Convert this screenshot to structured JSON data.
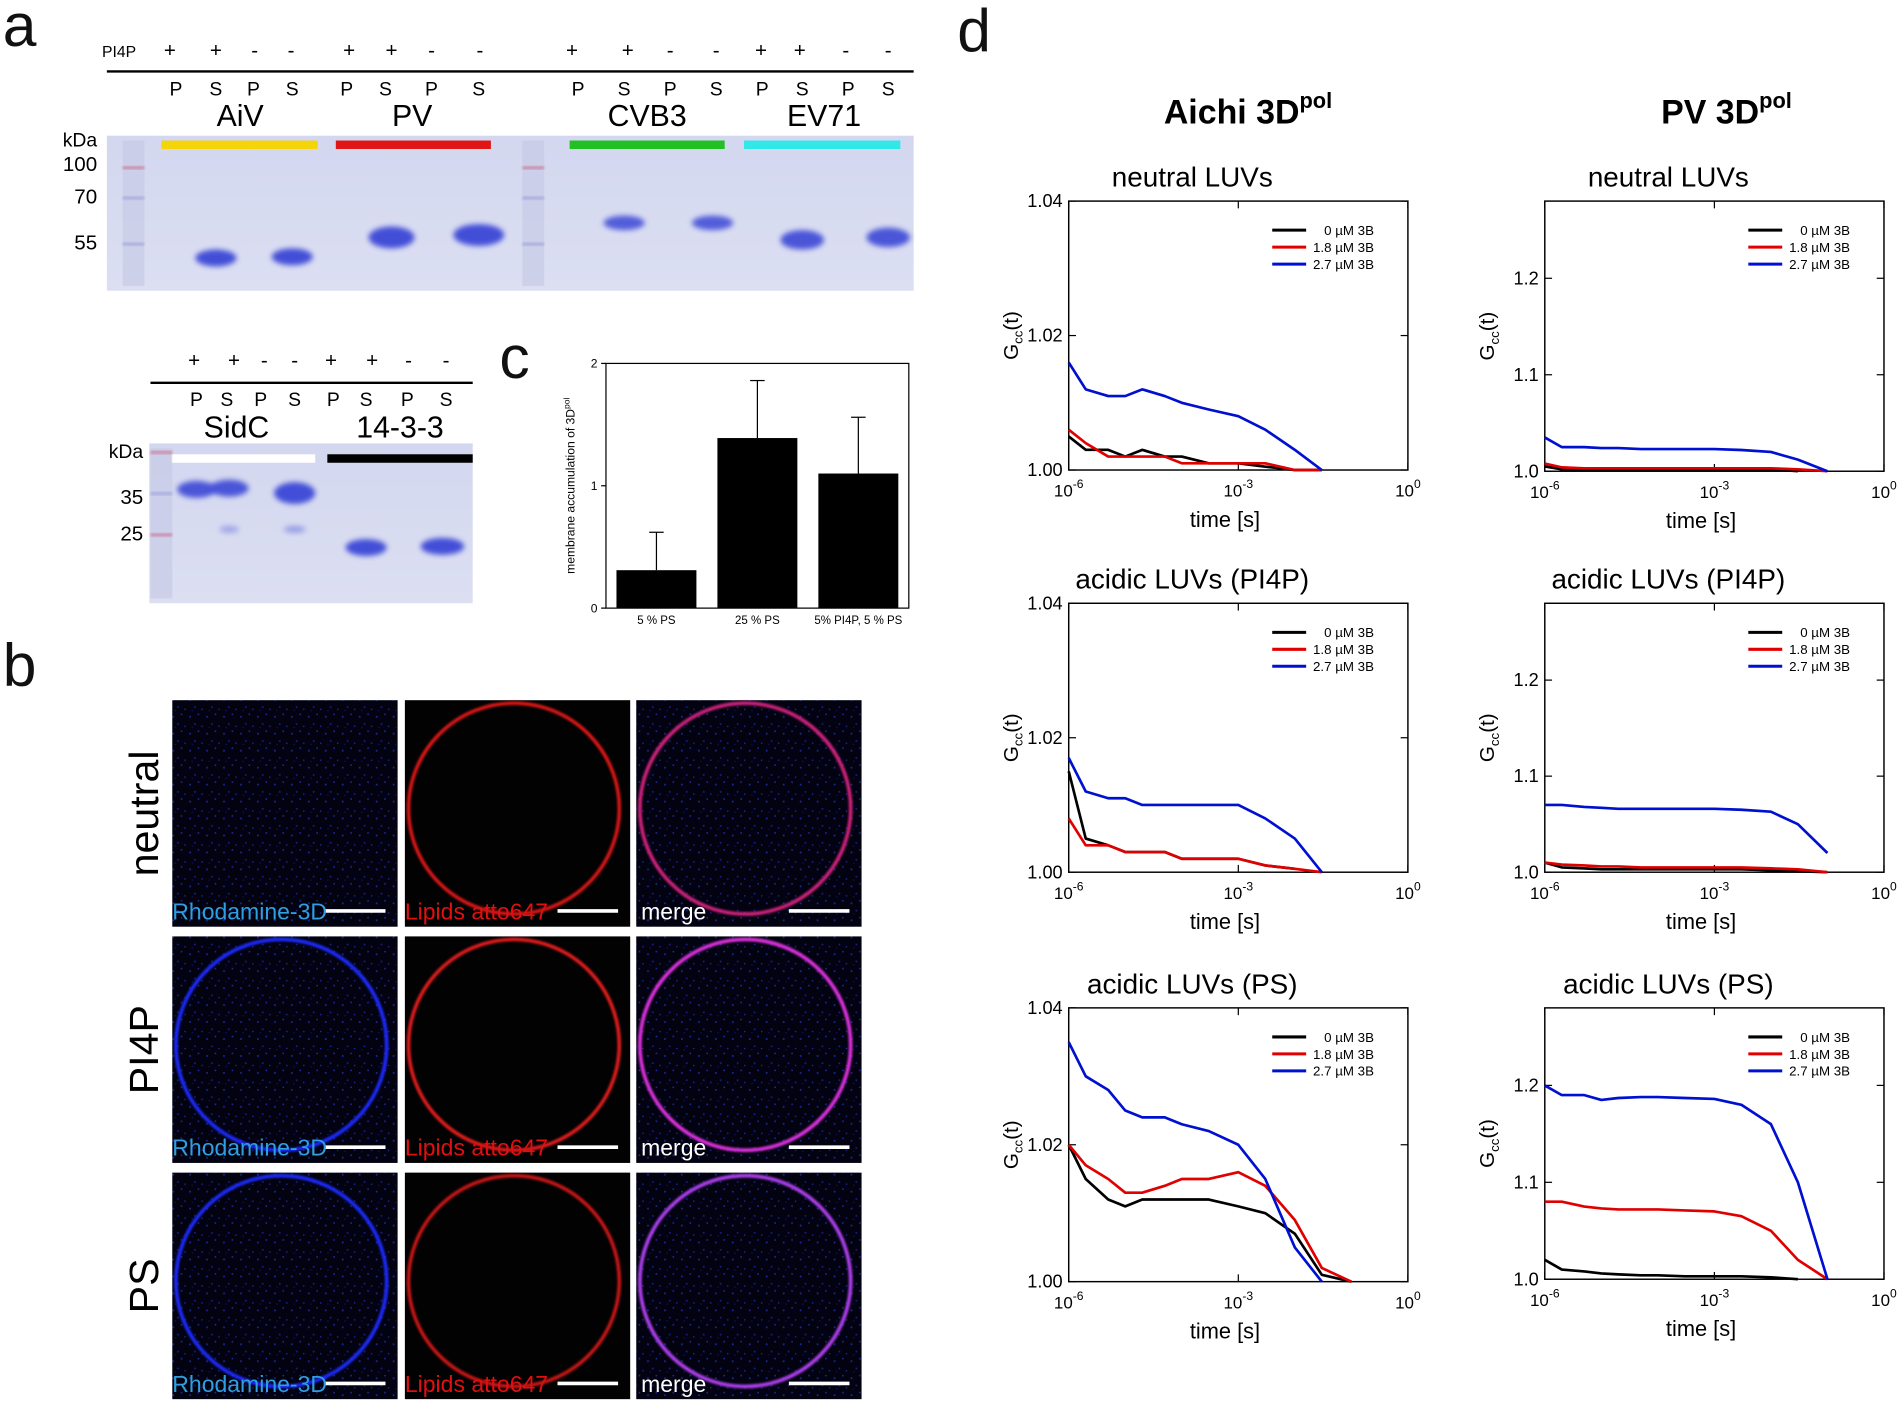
{
  "panel_a": {
    "label": "a",
    "pi4p_label": "PI4P",
    "gel1": {
      "signs": [
        "+",
        "+",
        "-",
        "-",
        "+",
        "+",
        "-",
        "-",
        "+",
        "+",
        "-",
        "-",
        "+",
        "+",
        "-",
        "-"
      ],
      "lanes": [
        "P",
        "S",
        "P",
        "S",
        "P",
        "S",
        "P",
        "S",
        "P",
        "S",
        "P",
        "S",
        "P",
        "S",
        "P",
        "S"
      ],
      "proteins": [
        "AiV",
        "PV",
        "CVB3",
        "EV71"
      ],
      "kda_label": "kDa",
      "markers": [
        100,
        70,
        55
      ]
    },
    "gel2": {
      "signs": [
        "+",
        "+",
        "-",
        "-",
        "+",
        "+",
        "-",
        "-"
      ],
      "lanes": [
        "P",
        "S",
        "P",
        "S",
        "P",
        "S",
        "P",
        "S"
      ],
      "proteins": [
        "SidC",
        "14-3-3"
      ],
      "kda_label": "kDa",
      "markers": [
        35,
        25
      ]
    }
  },
  "panel_b": {
    "label": "b",
    "rows": [
      "neutral",
      "PI4P",
      "PS"
    ],
    "channels": [
      "Rhodamine-3D",
      "Lipids atto647",
      "merge"
    ]
  },
  "panel_c": {
    "label": "c"
  },
  "panel_d": {
    "label": "d",
    "columns": [
      {
        "text": "Aichi 3D",
        "superscript": "pol"
      },
      {
        "text": "PV 3D",
        "superscript": "pol"
      }
    ]
  },
  "chart_data": [
    {
      "type": "bar",
      "ylabel": {
        "text": "membrane accumulation of 3D",
        "superscript": "pol"
      },
      "categories": [
        "5 % PS",
        "25 % PS",
        "5% PI4P, 5 % PS"
      ],
      "values": [
        0.31,
        1.39,
        1.1
      ],
      "errors": [
        0.31,
        0.47,
        0.46
      ],
      "color": "#000000",
      "ylim": [
        0,
        2
      ],
      "yticks": [
        0,
        1,
        2
      ]
    },
    {
      "type": "line",
      "title": "neutral LUVs",
      "xlabel": "time [s]",
      "ylabel": {
        "text": "G",
        "subscript": "cc",
        "suffix": "(t)"
      },
      "xscale": "log",
      "xlim": [
        1e-06,
        1
      ],
      "xticks": [
        {
          "value": 1e-06,
          "label": "10",
          "exponent": "-6"
        },
        {
          "value": 0.001,
          "label": "10",
          "exponent": "-3"
        },
        {
          "value": 1,
          "label": "10",
          "exponent": "0"
        }
      ],
      "ylim": [
        1,
        1.04
      ],
      "yticks": [
        {
          "value": 1,
          "label": "1.00"
        },
        {
          "value": 1.02,
          "label": "1.02"
        },
        {
          "value": 1.04,
          "label": "1.04"
        }
      ],
      "x": [
        1e-06,
        2e-06,
        5e-06,
        1e-05,
        2e-05,
        5e-05,
        0.0001,
        0.0003,
        0.001,
        0.003,
        0.01,
        0.03,
        0.1
      ],
      "legend": "upper right",
      "series": [
        {
          "name": "0 µM 3B",
          "color": "#000000",
          "values": [
            1.005,
            1.003,
            1.003,
            1.002,
            1.003,
            1.002,
            1.002,
            1.001,
            1.001,
            1.0005,
            1,
            1,
            null
          ]
        },
        {
          "name": "1.8 µM 3B",
          "color": "#e00000",
          "values": [
            1.006,
            1.004,
            1.002,
            1.002,
            1.002,
            1.002,
            1.001,
            1.001,
            1.001,
            1.001,
            1,
            1,
            null
          ]
        },
        {
          "name": "2.7 µM 3B",
          "color": "#0010d0",
          "values": [
            1.016,
            1.012,
            1.011,
            1.011,
            1.012,
            1.011,
            1.01,
            1.009,
            1.008,
            1.006,
            1.003,
            1,
            null
          ]
        }
      ]
    },
    {
      "type": "line",
      "title": "acidic LUVs (PI4P)",
      "xlabel": "time [s]",
      "ylabel": {
        "text": "G",
        "subscript": "cc",
        "suffix": "(t)"
      },
      "xscale": "log",
      "xlim": [
        1e-06,
        1
      ],
      "xticks": [
        {
          "value": 1e-06,
          "label": "10",
          "exponent": "-6"
        },
        {
          "value": 0.001,
          "label": "10",
          "exponent": "-3"
        },
        {
          "value": 1,
          "label": "10",
          "exponent": "0"
        }
      ],
      "ylim": [
        1,
        1.04
      ],
      "yticks": [
        {
          "value": 1,
          "label": "1.00"
        },
        {
          "value": 1.02,
          "label": "1.02"
        },
        {
          "value": 1.04,
          "label": "1.04"
        }
      ],
      "x": [
        1e-06,
        2e-06,
        5e-06,
        1e-05,
        2e-05,
        5e-05,
        0.0001,
        0.0003,
        0.001,
        0.003,
        0.01,
        0.03,
        0.1
      ],
      "legend": "upper right",
      "series": [
        {
          "name": "0 µM 3B",
          "color": "#000000",
          "values": [
            1.015,
            1.005,
            1.004,
            1.003,
            1.003,
            1.003,
            1.002,
            1.002,
            1.002,
            1.001,
            1.0005,
            null,
            null
          ]
        },
        {
          "name": "1.8 µM 3B",
          "color": "#e00000",
          "values": [
            1.008,
            1.004,
            1.004,
            1.003,
            1.003,
            1.003,
            1.002,
            1.002,
            1.002,
            1.001,
            1.0005,
            1,
            null
          ]
        },
        {
          "name": "2.7 µM 3B",
          "color": "#0010d0",
          "values": [
            1.017,
            1.012,
            1.011,
            1.011,
            1.01,
            1.01,
            1.01,
            1.01,
            1.01,
            1.008,
            1.005,
            1,
            null
          ]
        }
      ]
    },
    {
      "type": "line",
      "title": "acidic LUVs (PS)",
      "xlabel": "time [s]",
      "ylabel": {
        "text": "G",
        "subscript": "cc",
        "suffix": "(t)"
      },
      "xscale": "log",
      "xlim": [
        1e-06,
        1
      ],
      "xticks": [
        {
          "value": 1e-06,
          "label": "10",
          "exponent": "-6"
        },
        {
          "value": 0.001,
          "label": "10",
          "exponent": "-3"
        },
        {
          "value": 1,
          "label": "10",
          "exponent": "0"
        }
      ],
      "ylim": [
        1,
        1.04
      ],
      "yticks": [
        {
          "value": 1,
          "label": "1.00"
        },
        {
          "value": 1.02,
          "label": "1.02"
        },
        {
          "value": 1.04,
          "label": "1.04"
        }
      ],
      "x": [
        1e-06,
        2e-06,
        5e-06,
        1e-05,
        2e-05,
        5e-05,
        0.0001,
        0.0003,
        0.001,
        0.003,
        0.01,
        0.03,
        0.1
      ],
      "legend": "upper right",
      "series": [
        {
          "name": "0 µM 3B",
          "color": "#000000",
          "values": [
            1.02,
            1.015,
            1.012,
            1.011,
            1.012,
            1.012,
            1.012,
            1.012,
            1.011,
            1.01,
            1.007,
            1.001,
            1
          ]
        },
        {
          "name": "1.8 µM 3B",
          "color": "#e00000",
          "values": [
            1.02,
            1.017,
            1.015,
            1.013,
            1.013,
            1.014,
            1.015,
            1.015,
            1.016,
            1.014,
            1.009,
            1.002,
            1
          ]
        },
        {
          "name": "2.7 µM 3B",
          "color": "#0010d0",
          "values": [
            1.035,
            1.03,
            1.028,
            1.025,
            1.024,
            1.024,
            1.023,
            1.022,
            1.02,
            1.015,
            1.005,
            1,
            null
          ]
        }
      ]
    },
    {
      "type": "line",
      "title": "neutral LUVs",
      "xlabel": "time [s]",
      "ylabel": {
        "text": "G",
        "subscript": "cc",
        "suffix": "(t)"
      },
      "xscale": "log",
      "xlim": [
        1e-06,
        1
      ],
      "xticks": [
        {
          "value": 1e-06,
          "label": "10",
          "exponent": "-6"
        },
        {
          "value": 0.001,
          "label": "10",
          "exponent": "-3"
        },
        {
          "value": 1,
          "label": "10",
          "exponent": "0"
        }
      ],
      "ylim": [
        1,
        1.28
      ],
      "yticks": [
        {
          "value": 1,
          "label": "1.0"
        },
        1.1,
        1.2
      ],
      "x": [
        1e-06,
        2e-06,
        5e-06,
        1e-05,
        2e-05,
        5e-05,
        0.0001,
        0.0003,
        0.001,
        0.003,
        0.01,
        0.03,
        0.1
      ],
      "legend": "upper right",
      "series": [
        {
          "name": "0 µM 3B",
          "color": "#000000",
          "values": [
            1.005,
            1.002,
            1.002,
            1.002,
            1.002,
            1.002,
            1.002,
            1.002,
            1.002,
            1.002,
            1.002,
            1,
            null
          ]
        },
        {
          "name": "1.8 µM 3B",
          "color": "#e00000",
          "values": [
            1.008,
            1.004,
            1.003,
            1.003,
            1.003,
            1.003,
            1.003,
            1.003,
            1.003,
            1.003,
            1.003,
            1.002,
            1
          ]
        },
        {
          "name": "2.7 µM 3B",
          "color": "#0010d0",
          "values": [
            1.035,
            1.025,
            1.025,
            1.024,
            1.024,
            1.023,
            1.023,
            1.023,
            1.023,
            1.022,
            1.02,
            1.012,
            1
          ]
        }
      ]
    },
    {
      "type": "line",
      "title": "acidic LUVs (PI4P)",
      "xlabel": "time [s]",
      "ylabel": {
        "text": "G",
        "subscript": "cc",
        "suffix": "(t)"
      },
      "xscale": "log",
      "xlim": [
        1e-06,
        1
      ],
      "xticks": [
        {
          "value": 1e-06,
          "label": "10",
          "exponent": "-6"
        },
        {
          "value": 0.001,
          "label": "10",
          "exponent": "-3"
        },
        {
          "value": 1,
          "label": "10",
          "exponent": "0"
        }
      ],
      "ylim": [
        1,
        1.28
      ],
      "yticks": [
        {
          "value": 1,
          "label": "1.0"
        },
        1.1,
        1.2
      ],
      "x": [
        1e-06,
        2e-06,
        5e-06,
        1e-05,
        2e-05,
        5e-05,
        0.0001,
        0.0003,
        0.001,
        0.003,
        0.01,
        0.03,
        0.1
      ],
      "legend": "upper right",
      "series": [
        {
          "name": "0 µM 3B",
          "color": "#000000",
          "values": [
            1.01,
            1.005,
            1.004,
            1.003,
            1.003,
            1.003,
            1.003,
            1.003,
            1.003,
            1.003,
            1.002,
            1.001,
            1
          ]
        },
        {
          "name": "1.8 µM 3B",
          "color": "#e00000",
          "values": [
            1.01,
            1.008,
            1.007,
            1.006,
            1.006,
            1.005,
            1.005,
            1.005,
            1.005,
            1.005,
            1.004,
            1.003,
            1
          ]
        },
        {
          "name": "2.7 µM 3B",
          "color": "#0010d0",
          "values": [
            1.07,
            1.07,
            1.068,
            1.067,
            1.066,
            1.066,
            1.066,
            1.066,
            1.066,
            1.065,
            1.063,
            1.05,
            1.02
          ]
        }
      ]
    },
    {
      "type": "line",
      "title": "acidic LUVs (PS)",
      "xlabel": "time [s]",
      "ylabel": {
        "text": "G",
        "subscript": "cc",
        "suffix": "(t)"
      },
      "xscale": "log",
      "xlim": [
        1e-06,
        1
      ],
      "xticks": [
        {
          "value": 1e-06,
          "label": "10",
          "exponent": "-6"
        },
        {
          "value": 0.001,
          "label": "10",
          "exponent": "-3"
        },
        {
          "value": 1,
          "label": "10",
          "exponent": "0"
        }
      ],
      "ylim": [
        1,
        1.28
      ],
      "yticks": [
        {
          "value": 1,
          "label": "1.0"
        },
        1.1,
        1.2
      ],
      "x": [
        1e-06,
        2e-06,
        5e-06,
        1e-05,
        2e-05,
        5e-05,
        0.0001,
        0.0003,
        0.001,
        0.003,
        0.01,
        0.03,
        0.1
      ],
      "legend": "upper right",
      "series": [
        {
          "name": "0 µM 3B",
          "color": "#000000",
          "values": [
            1.02,
            1.01,
            1.008,
            1.006,
            1.005,
            1.004,
            1.004,
            1.003,
            1.003,
            1.003,
            1.002,
            1,
            null
          ]
        },
        {
          "name": "1.8 µM 3B",
          "color": "#e00000",
          "values": [
            1.08,
            1.08,
            1.075,
            1.073,
            1.072,
            1.072,
            1.072,
            1.071,
            1.07,
            1.065,
            1.05,
            1.02,
            1
          ]
        },
        {
          "name": "2.7 µM 3B",
          "color": "#0010d0",
          "values": [
            1.2,
            1.19,
            1.19,
            1.185,
            1.187,
            1.188,
            1.188,
            1.187,
            1.186,
            1.18,
            1.16,
            1.1,
            1
          ]
        }
      ]
    }
  ]
}
